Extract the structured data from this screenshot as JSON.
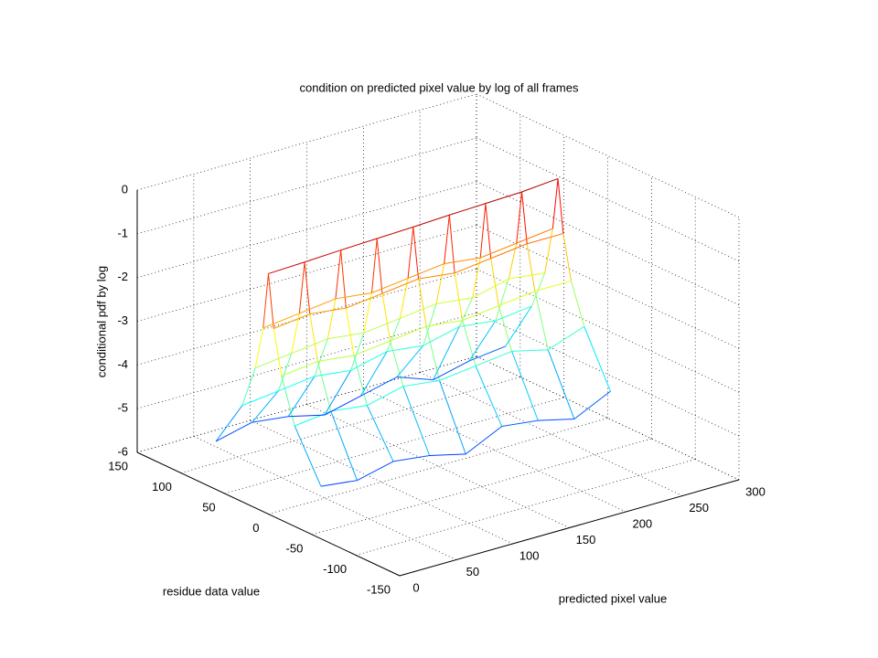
{
  "chart_data": {
    "type": "mesh3d",
    "title": "condition on predicted pixel value by log of all frames",
    "xlabel": "predicted pixel value",
    "ylabel": "residue data value",
    "zlabel": "conditional pdf by log",
    "xlim": [
      0,
      300
    ],
    "xticks": [
      0,
      50,
      100,
      150,
      200,
      250,
      300
    ],
    "ylim": [
      -150,
      150
    ],
    "yticks": [
      -150,
      -100,
      -50,
      0,
      50,
      100,
      150
    ],
    "zlim": [
      -6,
      0
    ],
    "zticks": [
      -6,
      -5,
      -4,
      -3,
      -2,
      -1,
      0
    ],
    "grid": true,
    "colormap": "jet",
    "x": [
      0,
      32,
      64,
      96,
      128,
      160,
      192,
      224,
      256
    ],
    "y": [
      -60,
      -30,
      -15,
      -6,
      0,
      6,
      15,
      30,
      60
    ],
    "z": [
      [
        -4.8,
        -4.9,
        -4.7,
        -4.8,
        -5.0,
        -4.6,
        -4.7,
        -4.9,
        -4.5
      ],
      [
        -3.7,
        -3.6,
        -3.7,
        -3.5,
        -3.6,
        -3.5,
        -3.4,
        -3.6,
        -3.3
      ],
      [
        -2.7,
        -2.6,
        -2.7,
        -2.6,
        -2.5,
        -2.6,
        -2.5,
        -2.4,
        -2.4
      ],
      [
        -1.7,
        -1.6,
        -1.7,
        -1.6,
        -1.5,
        -1.6,
        -1.5,
        -1.4,
        -1.4
      ],
      [
        -0.5,
        -0.47,
        -0.43,
        -0.4,
        -0.37,
        -0.33,
        -0.3,
        -0.27,
        -0.2
      ],
      [
        -1.8,
        -1.7,
        -1.6,
        -1.7,
        -1.6,
        -1.5,
        -1.6,
        -1.5,
        -1.4
      ],
      [
        -2.8,
        -2.7,
        -2.6,
        -2.7,
        -2.6,
        -2.5,
        -2.6,
        -2.4,
        -2.5
      ],
      [
        -3.8,
        -3.7,
        -3.6,
        -3.7,
        -3.5,
        -3.6,
        -3.4,
        -3.5,
        -3.4
      ],
      [
        -4.9,
        -4.7,
        -4.8,
        -5.0,
        -4.8,
        -4.6,
        -4.9,
        -4.7,
        -4.6
      ]
    ]
  }
}
